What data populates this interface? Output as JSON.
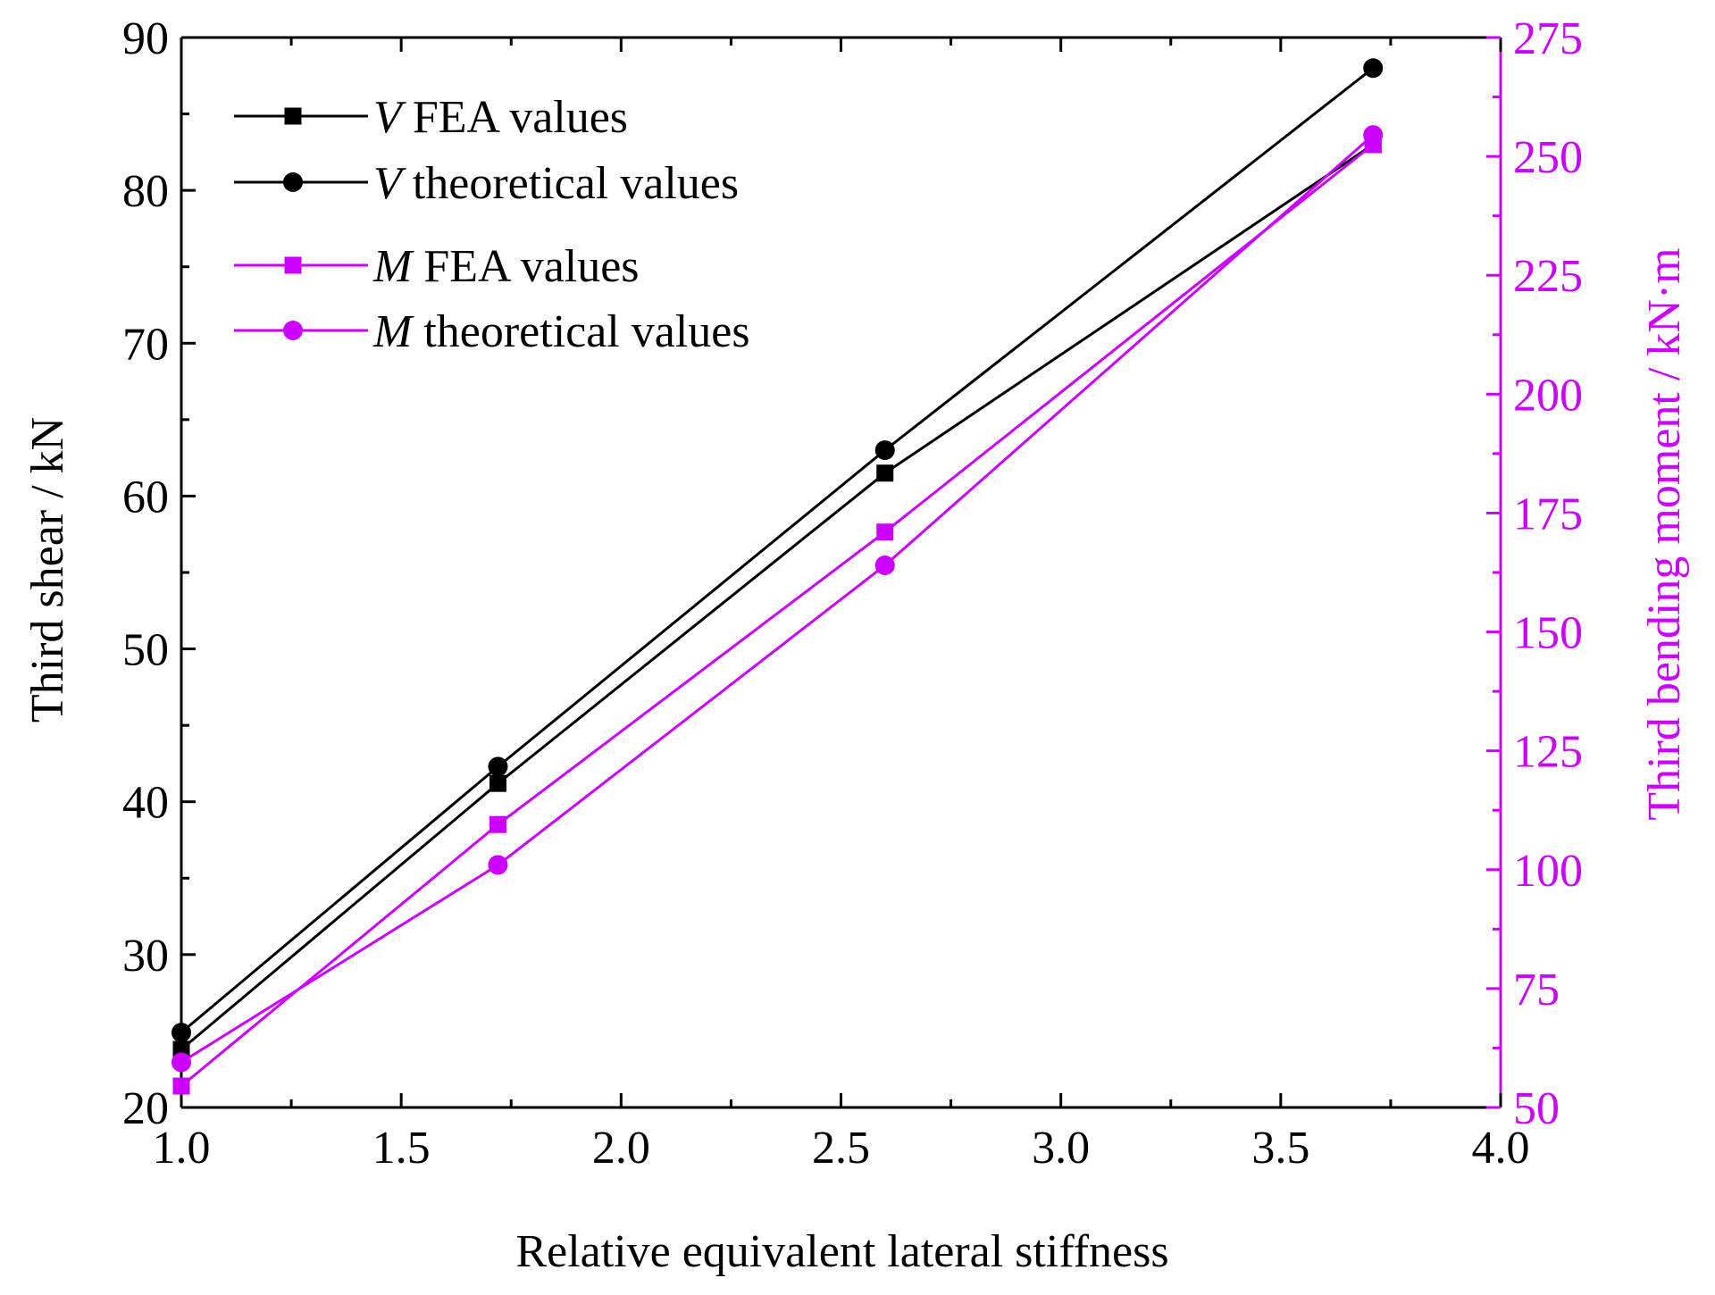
{
  "chart_data": {
    "type": "line",
    "xlabel": "Relative equivalent lateral stiffness",
    "ylabel": "Third shear / kN",
    "ylabel_right": "Third bending moment / kN·m",
    "xlim": [
      1.0,
      4.0
    ],
    "ylim": [
      20,
      90
    ],
    "ylim_right": [
      50,
      275
    ],
    "x_ticks": [
      "1.0",
      "1.5",
      "2.0",
      "2.5",
      "3.0",
      "3.5",
      "4.0"
    ],
    "y_ticks": [
      "20",
      "30",
      "40",
      "50",
      "60",
      "70",
      "80",
      "90"
    ],
    "y_ticks_right": [
      "50",
      "75",
      "100",
      "125",
      "150",
      "175",
      "200",
      "225",
      "250",
      "275"
    ],
    "grid": false,
    "legend_position": "top-left",
    "colors": {
      "black": "#000000",
      "magenta": "#cc00ff",
      "axis_right": "#cc00ff"
    },
    "x": [
      1.0,
      1.72,
      2.6,
      3.71
    ],
    "series": [
      {
        "name": "FEA values",
        "name_prefix": "V",
        "axis": "left",
        "marker": "square",
        "color": "#000000",
        "values": [
          23.8,
          41.2,
          61.5,
          83.0
        ]
      },
      {
        "name": "theoretical values",
        "name_prefix": "V",
        "axis": "left",
        "marker": "circle",
        "color": "#000000",
        "values": [
          24.9,
          42.3,
          63.0,
          88.0
        ]
      },
      {
        "name": "FEA values",
        "name_prefix": "M",
        "axis": "right",
        "marker": "square",
        "color": "#cc00ff",
        "values": [
          54.5,
          109.5,
          171.0,
          252.5
        ]
      },
      {
        "name": "theoretical values",
        "name_prefix": "M",
        "axis": "right",
        "marker": "circle",
        "color": "#cc00ff",
        "values": [
          59.5,
          101.0,
          164.0,
          254.5
        ]
      }
    ]
  }
}
